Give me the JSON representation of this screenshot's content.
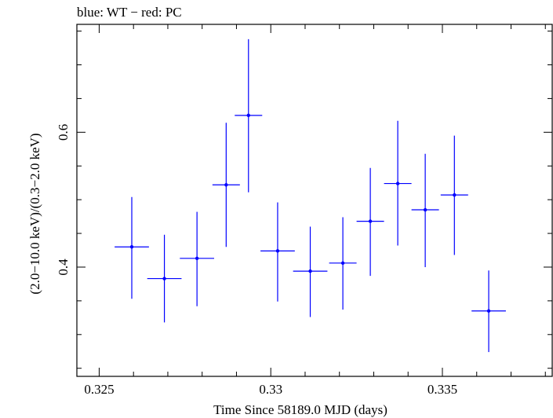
{
  "chart_data": {
    "type": "scatter",
    "title": "blue: WT − red: PC",
    "xlabel": "Time Since 58189.0 MJD (days)",
    "ylabel": "(2.0−10.0 keV)/(0.3−2.0 keV)",
    "xlim": [
      0.32435,
      0.3382
    ],
    "ylim": [
      0.238,
      0.76
    ],
    "x_ticks": [
      0.325,
      0.33,
      0.335
    ],
    "x_tick_labels": [
      "0.325",
      "0.33",
      "0.335"
    ],
    "y_ticks": [
      0.4,
      0.6
    ],
    "y_tick_labels": [
      "0.4",
      "0.6"
    ],
    "grid": false,
    "series": [
      {
        "color": "#0000ff",
        "points": [
          {
            "x": 0.32595,
            "xerr": 0.0005,
            "y": 0.43,
            "y_low": 0.353,
            "y_high": 0.504
          },
          {
            "x": 0.3269,
            "xerr": 0.0005,
            "y": 0.383,
            "y_low": 0.318,
            "y_high": 0.448
          },
          {
            "x": 0.32785,
            "xerr": 0.0005,
            "y": 0.413,
            "y_low": 0.342,
            "y_high": 0.482
          },
          {
            "x": 0.3287,
            "xerr": 0.0004,
            "y": 0.522,
            "y_low": 0.43,
            "y_high": 0.614
          },
          {
            "x": 0.32935,
            "xerr": 0.0004,
            "y": 0.625,
            "y_low": 0.511,
            "y_high": 0.738
          },
          {
            "x": 0.3302,
            "xerr": 0.0005,
            "y": 0.424,
            "y_low": 0.349,
            "y_high": 0.496
          },
          {
            "x": 0.33115,
            "xerr": 0.0005,
            "y": 0.394,
            "y_low": 0.326,
            "y_high": 0.46
          },
          {
            "x": 0.3321,
            "xerr": 0.0004,
            "y": 0.406,
            "y_low": 0.337,
            "y_high": 0.474
          },
          {
            "x": 0.3329,
            "xerr": 0.0004,
            "y": 0.468,
            "y_low": 0.387,
            "y_high": 0.547
          },
          {
            "x": 0.3337,
            "xerr": 0.0004,
            "y": 0.524,
            "y_low": 0.432,
            "y_high": 0.617
          },
          {
            "x": 0.3345,
            "xerr": 0.0004,
            "y": 0.485,
            "y_low": 0.4,
            "y_high": 0.568
          },
          {
            "x": 0.33535,
            "xerr": 0.0004,
            "y": 0.507,
            "y_low": 0.418,
            "y_high": 0.595
          },
          {
            "x": 0.33635,
            "xerr": 0.0005,
            "y": 0.335,
            "y_low": 0.274,
            "y_high": 0.395
          }
        ]
      }
    ]
  }
}
